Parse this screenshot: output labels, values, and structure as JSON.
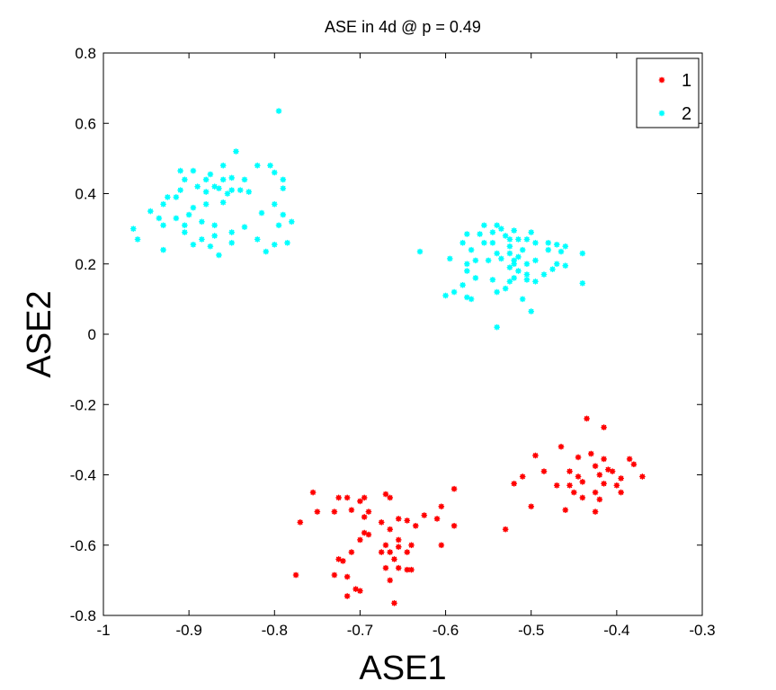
{
  "chart_data": {
    "type": "scatter",
    "title": "ASE in 4d @ p = 0.49",
    "xlabel": "ASE1",
    "ylabel": "ASE2",
    "xlim": [
      -1,
      -0.3
    ],
    "ylim": [
      -0.8,
      0.8
    ],
    "xticks": [
      "-1",
      "-0.9",
      "-0.8",
      "-0.7",
      "-0.6",
      "-0.5",
      "-0.4",
      "-0.3"
    ],
    "yticks": [
      "-0.8",
      "-0.6",
      "-0.4",
      "-0.2",
      "0",
      "0.2",
      "0.4",
      "0.6",
      "0.8"
    ],
    "grid": false,
    "legend_position": "top-right",
    "series": [
      {
        "name": "1",
        "color": "#ff0000",
        "marker": "asterisk",
        "points": [
          [
            -0.435,
            -0.24
          ],
          [
            -0.415,
            -0.265
          ],
          [
            -0.465,
            -0.32
          ],
          [
            -0.495,
            -0.345
          ],
          [
            -0.43,
            -0.34
          ],
          [
            -0.445,
            -0.35
          ],
          [
            -0.415,
            -0.355
          ],
          [
            -0.385,
            -0.355
          ],
          [
            -0.425,
            -0.375
          ],
          [
            -0.38,
            -0.37
          ],
          [
            -0.455,
            -0.39
          ],
          [
            -0.485,
            -0.39
          ],
          [
            -0.51,
            -0.405
          ],
          [
            -0.445,
            -0.405
          ],
          [
            -0.42,
            -0.4
          ],
          [
            -0.405,
            -0.39
          ],
          [
            -0.37,
            -0.405
          ],
          [
            -0.395,
            -0.41
          ],
          [
            -0.44,
            -0.42
          ],
          [
            -0.455,
            -0.43
          ],
          [
            -0.47,
            -0.43
          ],
          [
            -0.52,
            -0.425
          ],
          [
            -0.415,
            -0.425
          ],
          [
            -0.4,
            -0.43
          ],
          [
            -0.45,
            -0.45
          ],
          [
            -0.425,
            -0.45
          ],
          [
            -0.44,
            -0.465
          ],
          [
            -0.42,
            -0.47
          ],
          [
            -0.46,
            -0.5
          ],
          [
            -0.425,
            -0.505
          ],
          [
            -0.5,
            -0.49
          ],
          [
            -0.41,
            -0.385
          ],
          [
            -0.53,
            -0.555
          ],
          [
            -0.395,
            -0.45
          ],
          [
            -0.755,
            -0.45
          ],
          [
            -0.725,
            -0.465
          ],
          [
            -0.715,
            -0.465
          ],
          [
            -0.695,
            -0.465
          ],
          [
            -0.67,
            -0.455
          ],
          [
            -0.665,
            -0.465
          ],
          [
            -0.7,
            -0.475
          ],
          [
            -0.71,
            -0.5
          ],
          [
            -0.73,
            -0.505
          ],
          [
            -0.75,
            -0.505
          ],
          [
            -0.69,
            -0.505
          ],
          [
            -0.695,
            -0.52
          ],
          [
            -0.655,
            -0.525
          ],
          [
            -0.675,
            -0.535
          ],
          [
            -0.645,
            -0.53
          ],
          [
            -0.625,
            -0.515
          ],
          [
            -0.605,
            -0.49
          ],
          [
            -0.59,
            -0.44
          ],
          [
            -0.61,
            -0.525
          ],
          [
            -0.635,
            -0.545
          ],
          [
            -0.59,
            -0.545
          ],
          [
            -0.77,
            -0.535
          ],
          [
            -0.665,
            -0.555
          ],
          [
            -0.695,
            -0.565
          ],
          [
            -0.69,
            -0.57
          ],
          [
            -0.7,
            -0.585
          ],
          [
            -0.655,
            -0.585
          ],
          [
            -0.67,
            -0.6
          ],
          [
            -0.64,
            -0.6
          ],
          [
            -0.605,
            -0.6
          ],
          [
            -0.655,
            -0.605
          ],
          [
            -0.71,
            -0.62
          ],
          [
            -0.675,
            -0.62
          ],
          [
            -0.665,
            -0.62
          ],
          [
            -0.645,
            -0.62
          ],
          [
            -0.725,
            -0.64
          ],
          [
            -0.72,
            -0.645
          ],
          [
            -0.66,
            -0.64
          ],
          [
            -0.655,
            -0.665
          ],
          [
            -0.645,
            -0.67
          ],
          [
            -0.64,
            -0.67
          ],
          [
            -0.67,
            -0.665
          ],
          [
            -0.73,
            -0.685
          ],
          [
            -0.715,
            -0.69
          ],
          [
            -0.775,
            -0.685
          ],
          [
            -0.705,
            -0.725
          ],
          [
            -0.665,
            -0.7
          ],
          [
            -0.7,
            -0.73
          ],
          [
            -0.715,
            -0.745
          ],
          [
            -0.66,
            -0.765
          ]
        ]
      },
      {
        "name": "2",
        "color": "#00ffff",
        "marker": "asterisk",
        "points": [
          [
            -0.965,
            0.3
          ],
          [
            -0.96,
            0.27
          ],
          [
            -0.93,
            0.24
          ],
          [
            -0.945,
            0.35
          ],
          [
            -0.935,
            0.33
          ],
          [
            -0.93,
            0.37
          ],
          [
            -0.925,
            0.39
          ],
          [
            -0.93,
            0.31
          ],
          [
            -0.915,
            0.39
          ],
          [
            -0.91,
            0.41
          ],
          [
            -0.905,
            0.44
          ],
          [
            -0.91,
            0.465
          ],
          [
            -0.895,
            0.465
          ],
          [
            -0.875,
            0.455
          ],
          [
            -0.86,
            0.48
          ],
          [
            -0.845,
            0.52
          ],
          [
            -0.82,
            0.48
          ],
          [
            -0.805,
            0.48
          ],
          [
            -0.795,
            0.635
          ],
          [
            -0.89,
            0.42
          ],
          [
            -0.88,
            0.405
          ],
          [
            -0.87,
            0.42
          ],
          [
            -0.865,
            0.415
          ],
          [
            -0.855,
            0.4
          ],
          [
            -0.85,
            0.41
          ],
          [
            -0.84,
            0.41
          ],
          [
            -0.83,
            0.405
          ],
          [
            -0.86,
            0.375
          ],
          [
            -0.88,
            0.37
          ],
          [
            -0.895,
            0.36
          ],
          [
            -0.9,
            0.34
          ],
          [
            -0.905,
            0.31
          ],
          [
            -0.915,
            0.33
          ],
          [
            -0.885,
            0.32
          ],
          [
            -0.87,
            0.31
          ],
          [
            -0.85,
            0.29
          ],
          [
            -0.87,
            0.28
          ],
          [
            -0.905,
            0.29
          ],
          [
            -0.885,
            0.27
          ],
          [
            -0.875,
            0.25
          ],
          [
            -0.895,
            0.255
          ],
          [
            -0.85,
            0.26
          ],
          [
            -0.835,
            0.305
          ],
          [
            -0.82,
            0.27
          ],
          [
            -0.815,
            0.345
          ],
          [
            -0.8,
            0.37
          ],
          [
            -0.795,
            0.31
          ],
          [
            -0.79,
            0.34
          ],
          [
            -0.78,
            0.32
          ],
          [
            -0.785,
            0.26
          ],
          [
            -0.8,
            0.255
          ],
          [
            -0.81,
            0.235
          ],
          [
            -0.865,
            0.225
          ],
          [
            -0.79,
            0.44
          ],
          [
            -0.8,
            0.46
          ],
          [
            -0.79,
            0.415
          ],
          [
            -0.85,
            0.445
          ],
          [
            -0.835,
            0.44
          ],
          [
            -0.88,
            0.44
          ],
          [
            -0.86,
            0.44
          ],
          [
            -0.555,
            0.31
          ],
          [
            -0.54,
            0.31
          ],
          [
            -0.535,
            0.3
          ],
          [
            -0.52,
            0.295
          ],
          [
            -0.5,
            0.29
          ],
          [
            -0.545,
            0.29
          ],
          [
            -0.56,
            0.285
          ],
          [
            -0.53,
            0.28
          ],
          [
            -0.525,
            0.27
          ],
          [
            -0.515,
            0.27
          ],
          [
            -0.505,
            0.27
          ],
          [
            -0.495,
            0.26
          ],
          [
            -0.48,
            0.26
          ],
          [
            -0.47,
            0.255
          ],
          [
            -0.46,
            0.25
          ],
          [
            -0.44,
            0.23
          ],
          [
            -0.465,
            0.235
          ],
          [
            -0.48,
            0.24
          ],
          [
            -0.51,
            0.24
          ],
          [
            -0.525,
            0.25
          ],
          [
            -0.545,
            0.26
          ],
          [
            -0.555,
            0.26
          ],
          [
            -0.575,
            0.285
          ],
          [
            -0.58,
            0.26
          ],
          [
            -0.57,
            0.24
          ],
          [
            -0.54,
            0.23
          ],
          [
            -0.525,
            0.23
          ],
          [
            -0.515,
            0.22
          ],
          [
            -0.535,
            0.215
          ],
          [
            -0.55,
            0.21
          ],
          [
            -0.52,
            0.2
          ],
          [
            -0.505,
            0.2
          ],
          [
            -0.495,
            0.21
          ],
          [
            -0.47,
            0.2
          ],
          [
            -0.46,
            0.195
          ],
          [
            -0.525,
            0.19
          ],
          [
            -0.515,
            0.18
          ],
          [
            -0.505,
            0.17
          ],
          [
            -0.52,
            0.16
          ],
          [
            -0.545,
            0.155
          ],
          [
            -0.565,
            0.16
          ],
          [
            -0.575,
            0.18
          ],
          [
            -0.575,
            0.2
          ],
          [
            -0.565,
            0.21
          ],
          [
            -0.595,
            0.215
          ],
          [
            -0.63,
            0.235
          ],
          [
            -0.58,
            0.14
          ],
          [
            -0.59,
            0.12
          ],
          [
            -0.6,
            0.11
          ],
          [
            -0.57,
            0.1
          ],
          [
            -0.575,
            0.105
          ],
          [
            -0.54,
            0.12
          ],
          [
            -0.525,
            0.15
          ],
          [
            -0.505,
            0.155
          ],
          [
            -0.495,
            0.15
          ],
          [
            -0.53,
            0.13
          ],
          [
            -0.51,
            0.1
          ],
          [
            -0.5,
            0.065
          ],
          [
            -0.54,
            0.02
          ],
          [
            -0.44,
            0.145
          ],
          [
            -0.485,
            0.17
          ],
          [
            -0.475,
            0.185
          ],
          [
            -0.52,
            0.21
          ]
        ]
      }
    ]
  }
}
